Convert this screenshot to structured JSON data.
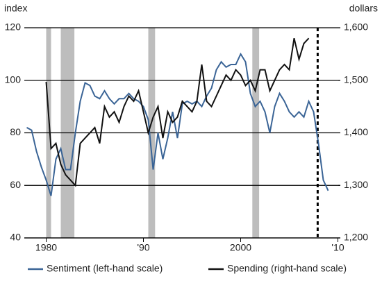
{
  "chart_data": {
    "type": "line",
    "y_axis_label": "index",
    "y2_axis_label": "dollars",
    "x": [
      1978,
      1978.5,
      1979,
      1979.5,
      1980,
      1980.5,
      1981,
      1981.5,
      1982,
      1982.5,
      1983,
      1983.5,
      1984,
      1984.5,
      1985,
      1985.5,
      1986,
      1986.5,
      1987,
      1987.5,
      1988,
      1988.5,
      1989,
      1989.5,
      1990,
      1990.5,
      1991,
      1991.5,
      1992,
      1992.5,
      1993,
      1993.5,
      1994,
      1994.5,
      1995,
      1995.5,
      1996,
      1996.5,
      1997,
      1997.5,
      1998,
      1998.5,
      1999,
      1999.5,
      2000,
      2000.5,
      2001,
      2001.5,
      2002,
      2002.5,
      2003,
      2003.5,
      2004,
      2004.5,
      2005,
      2005.5,
      2006,
      2006.5,
      2007,
      2007.5,
      2008,
      2008.5,
      2009
    ],
    "series": [
      {
        "name": "Sentiment (left-hand scale)",
        "color": "#3a6496",
        "axis": "y",
        "values": [
          82,
          81,
          73,
          67,
          62,
          56,
          70,
          74,
          66,
          66,
          80,
          92,
          99,
          98,
          94,
          93,
          96,
          93,
          91,
          93,
          93,
          95,
          93,
          92,
          90,
          85,
          66,
          80,
          70,
          78,
          88,
          78,
          91,
          92,
          91,
          92,
          90,
          94,
          97,
          104,
          107,
          105,
          106,
          106,
          110,
          107,
          95,
          90,
          92,
          88,
          80,
          90,
          95,
          92,
          88,
          86,
          88,
          86,
          92,
          88,
          76,
          62,
          58
        ]
      },
      {
        "name": "Spending (right-hand scale)",
        "color": "#111111",
        "axis": "y2",
        "values": [
          null,
          null,
          null,
          null,
          1497,
          1370,
          1380,
          1340,
          1320,
          1310,
          1300,
          1380,
          1390,
          1400,
          1410,
          1380,
          1450,
          1430,
          1440,
          1420,
          1450,
          1470,
          1460,
          1480,
          1440,
          1400,
          1430,
          1450,
          1390,
          1440,
          1420,
          1430,
          1460,
          1450,
          1440,
          1460,
          1530,
          1460,
          1450,
          1470,
          1490,
          1510,
          1500,
          1520,
          1510,
          1490,
          1500,
          1480,
          1520,
          1520,
          1480,
          1500,
          1520,
          1530,
          1520,
          1580,
          1540,
          1570,
          1580,
          null,
          null,
          null,
          null
        ]
      }
    ],
    "xlim": [
      1977.75,
      2010.25
    ],
    "xticks": [
      1980,
      {
        "value": 1990,
        "label": "'90"
      },
      2000,
      {
        "value": 2010,
        "label": "'10"
      }
    ],
    "ylim": [
      40,
      120
    ],
    "yticks": [
      40,
      60,
      80,
      100,
      120
    ],
    "y2lim": [
      1200,
      1600
    ],
    "y2ticks": [
      {
        "value": 1200,
        "label": "1,200"
      },
      {
        "value": 1300,
        "label": "1,300"
      },
      {
        "value": 1400,
        "label": "1,400"
      },
      {
        "value": 1500,
        "label": "1,500"
      },
      {
        "value": 1600,
        "label": "1,600"
      }
    ],
    "grid": true,
    "shaded_periods": [
      [
        1980,
        1980.5
      ],
      [
        1981.5,
        1982.9
      ],
      [
        1990.5,
        1991.2
      ],
      [
        2001.2,
        2001.9
      ]
    ],
    "shade_color": "#bdbdbd",
    "dashed_line_x": 2007.92
  }
}
